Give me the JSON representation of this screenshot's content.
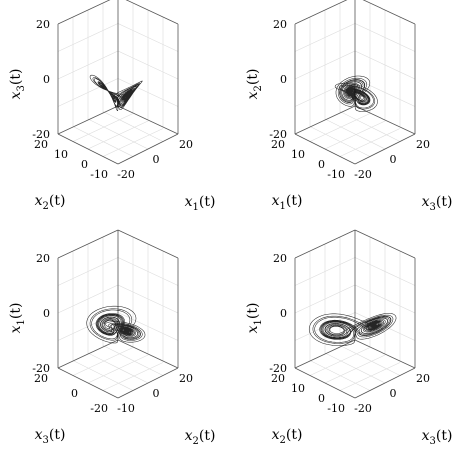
{
  "chart_data": [
    {
      "type": "line",
      "projection": "3d",
      "xlabel": "x_1(t)",
      "ylabel": "x_2(t)",
      "zlabel": "x_3(t)",
      "x_ticks": [
        "-20",
        "0",
        "20"
      ],
      "y_ticks": [
        "-10",
        "0",
        "10",
        "20"
      ],
      "z_ticks": [
        "-20",
        "0",
        "20"
      ],
      "xlim": [
        -20,
        20
      ],
      "ylim": [
        -10,
        20
      ],
      "zlim": [
        -20,
        20
      ],
      "grid": true
    },
    {
      "type": "line",
      "projection": "3d",
      "xlabel": "x_3(t)",
      "ylabel": "x_1(t)",
      "zlabel": "x_2(t)",
      "x_ticks": [
        "-20",
        "0",
        "20"
      ],
      "y_ticks": [
        "-10",
        "0",
        "10",
        "20"
      ],
      "z_ticks": [
        "-20",
        "0",
        "20"
      ],
      "xlim": [
        -20,
        20
      ],
      "ylim": [
        -10,
        20
      ],
      "zlim": [
        -20,
        20
      ],
      "grid": true
    },
    {
      "type": "line",
      "projection": "3d",
      "xlabel": "x_2(t)",
      "ylabel": "x_3(t)",
      "zlabel": "x_1(t)",
      "x_ticks": [
        "-10",
        "0",
        "20"
      ],
      "y_ticks": [
        "-20",
        "0",
        "20"
      ],
      "z_ticks": [
        "-20",
        "0",
        "20"
      ],
      "xlim": [
        -10,
        20
      ],
      "ylim": [
        -20,
        20
      ],
      "zlim": [
        -20,
        20
      ],
      "grid": true
    },
    {
      "type": "line",
      "projection": "3d",
      "xlabel": "x_3(t)",
      "ylabel": "x_2(t)",
      "zlabel": "x_1(t)",
      "x_ticks": [
        "-20",
        "0",
        "20"
      ],
      "y_ticks": [
        "-10",
        "0",
        "10",
        "20"
      ],
      "z_ticks": [
        "-20",
        "0",
        "20"
      ],
      "xlim": [
        -20,
        20
      ],
      "ylim": [
        -10,
        20
      ],
      "zlim": [
        -20,
        20
      ],
      "grid": true
    }
  ]
}
